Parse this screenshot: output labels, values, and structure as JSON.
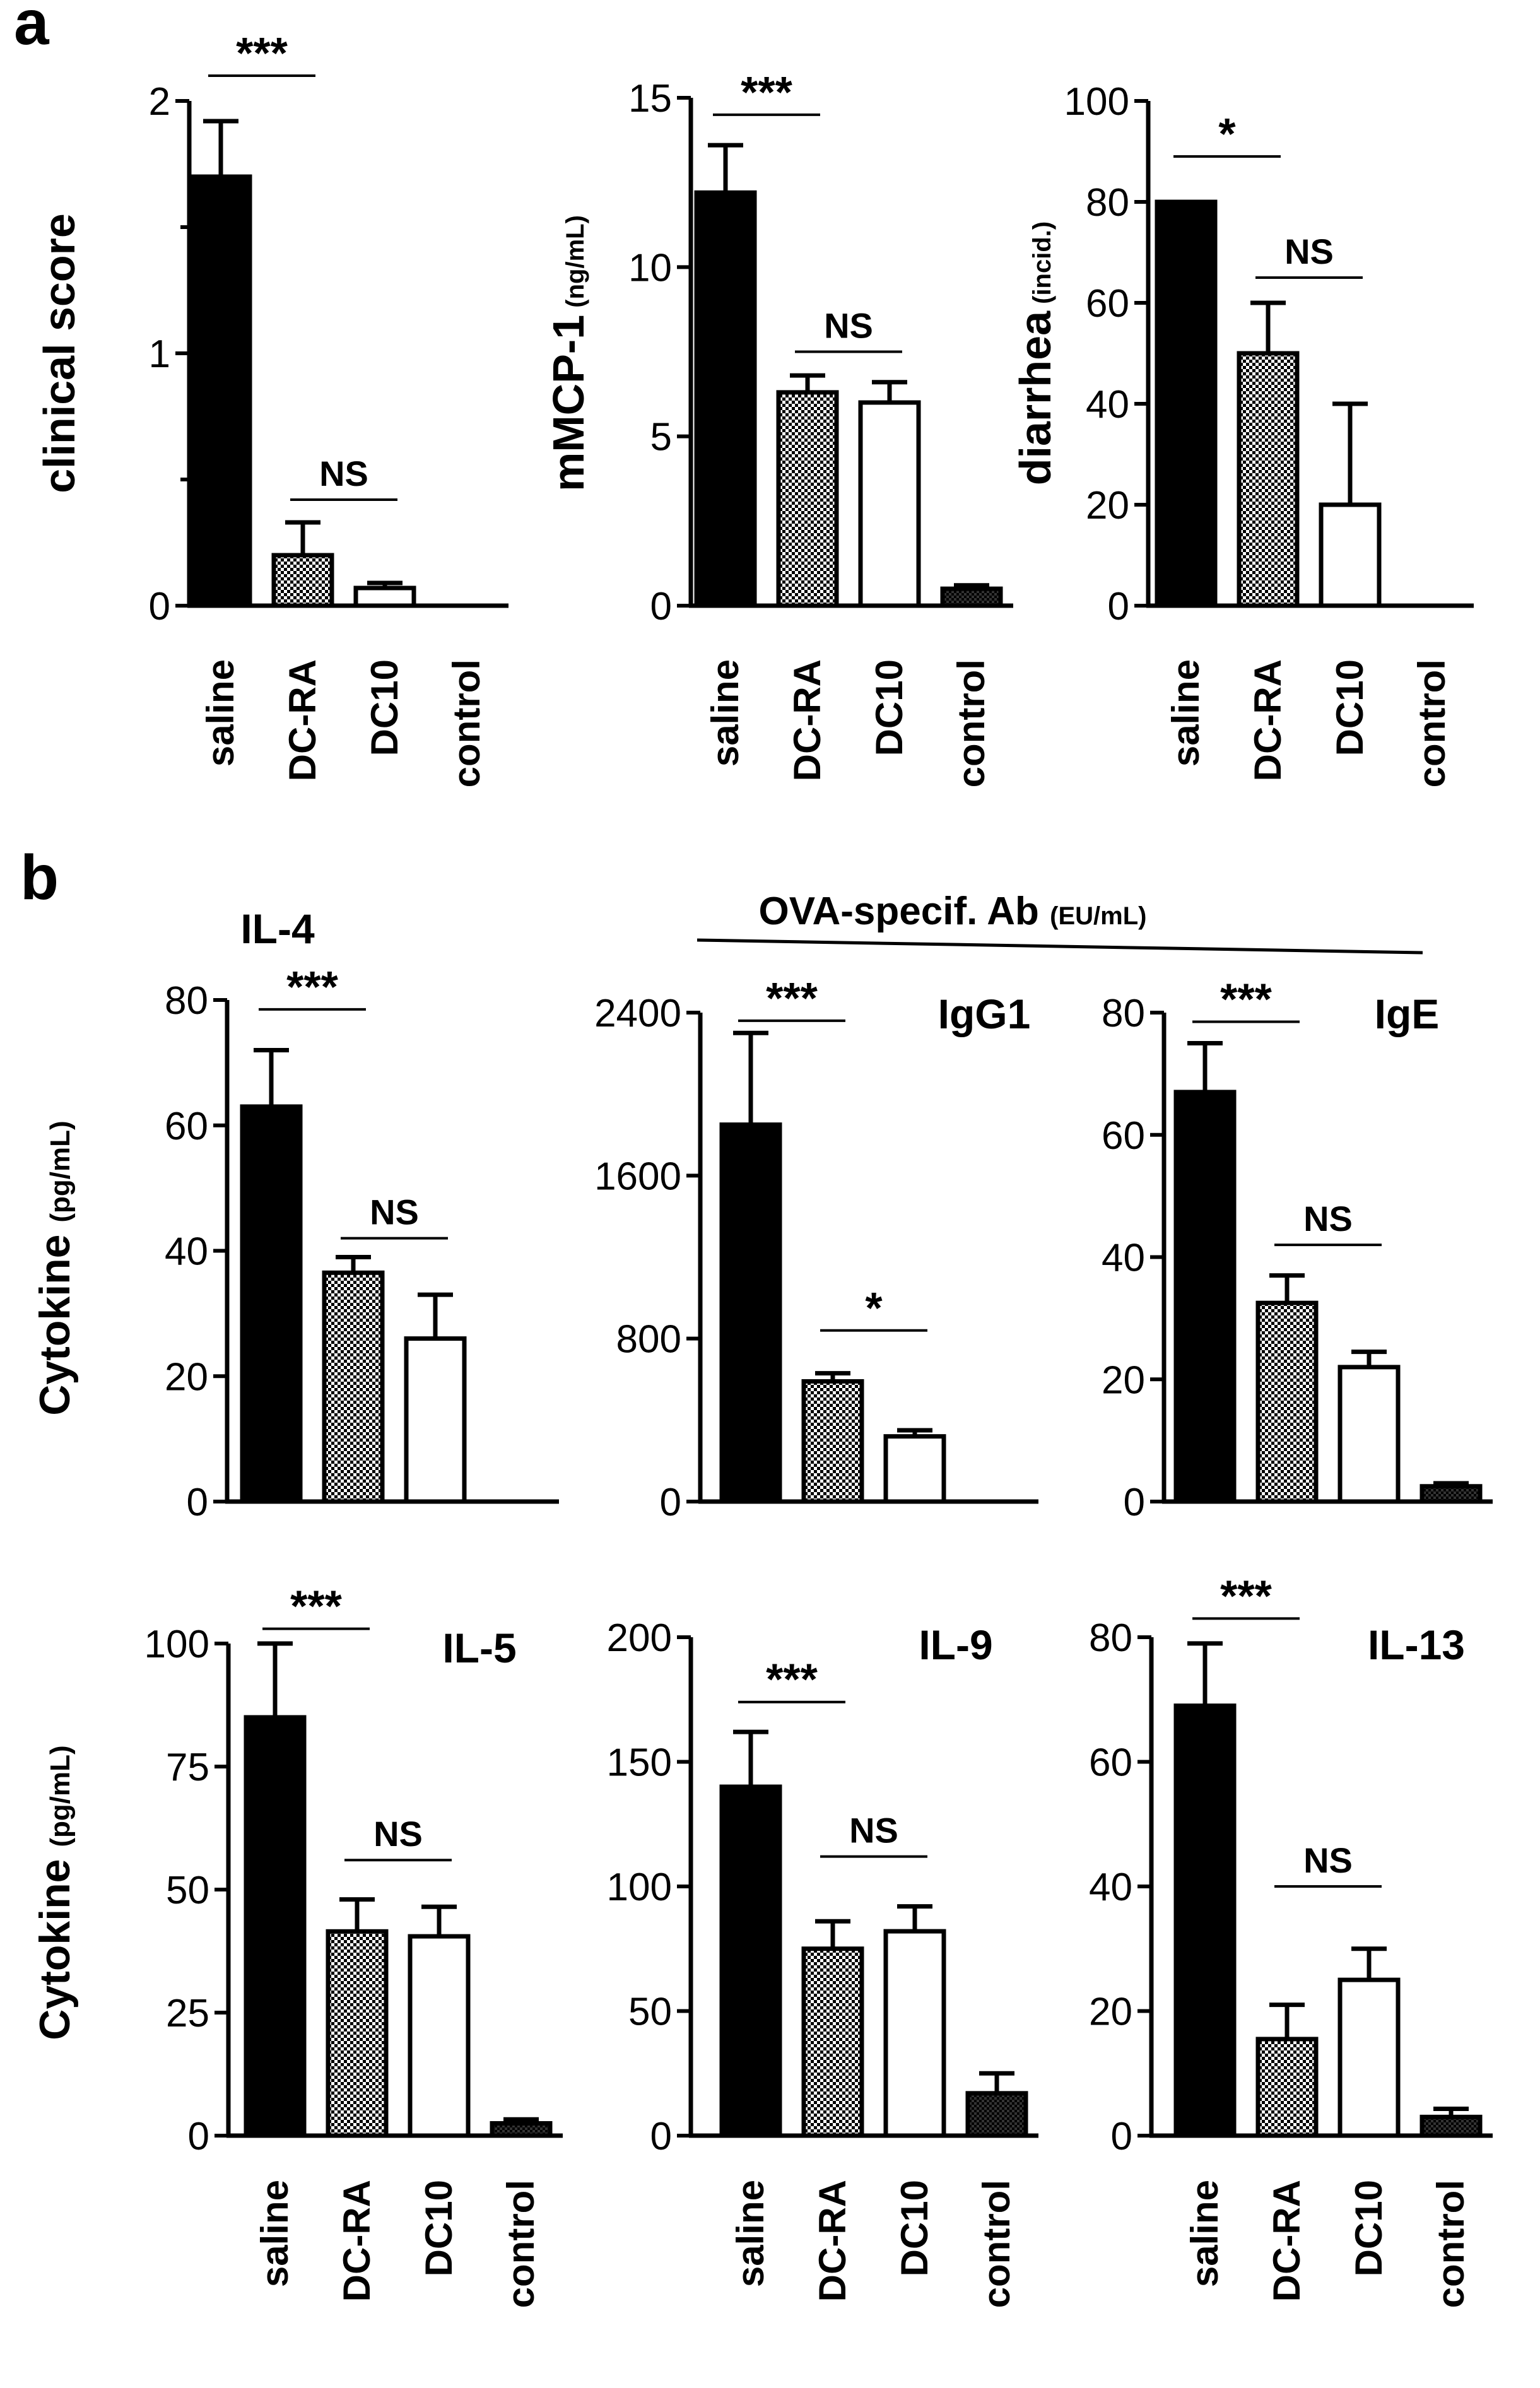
{
  "figure": {
    "panel_a_letter": "a",
    "panel_b_letter": "b",
    "cytokine_ylabel_main": "Cytokine",
    "cytokine_ylabel_unit": "(pg/mL)",
    "ova_header_main": "OVA-specif. Ab",
    "ova_header_unit": "(EU/mL)"
  },
  "chart_data": [
    {
      "id": "clinical",
      "type": "bar",
      "title": "",
      "ylabel": "clinical score",
      "ylabel_unit": "",
      "categories": [
        "saline",
        "DC-RA",
        "DC10",
        "control"
      ],
      "values": [
        1.7,
        0.2,
        0.07,
        0
      ],
      "errors": [
        0.22,
        0.13,
        0.02,
        0
      ],
      "patterns": [
        "solid",
        "hatch",
        "open",
        "dark"
      ],
      "ylim": [
        0,
        2
      ],
      "yticks": [
        0,
        1,
        2
      ],
      "yticklabels": [
        "0",
        "1",
        "2"
      ],
      "minor_ticks": [
        0.5,
        1.5
      ],
      "significance": [
        {
          "label": "***",
          "from": 0,
          "to": 1,
          "y": 2.1
        },
        {
          "label": "NS",
          "from": 1,
          "to": 2,
          "y": 0.42
        }
      ]
    },
    {
      "id": "mmcp1",
      "type": "bar",
      "title": "",
      "ylabel": "mMCP-1",
      "ylabel_unit": "(ng/mL)",
      "categories": [
        "saline",
        "DC-RA",
        "DC10",
        "control"
      ],
      "values": [
        12.2,
        6.3,
        6.0,
        0.5
      ],
      "errors": [
        1.4,
        0.5,
        0.6,
        0.1
      ],
      "patterns": [
        "solid",
        "hatch",
        "open",
        "dark"
      ],
      "ylim": [
        0,
        15
      ],
      "yticks": [
        0,
        5,
        10,
        15
      ],
      "yticklabels": [
        "0",
        "5",
        "10",
        "15"
      ],
      "minor_ticks": [],
      "significance": [
        {
          "label": "***",
          "from": 0,
          "to": 1,
          "y": 14.5
        },
        {
          "label": "NS",
          "from": 1,
          "to": 2,
          "y": 7.5
        }
      ]
    },
    {
      "id": "diarrhea",
      "type": "bar",
      "title": "",
      "ylabel": "diarrhea",
      "ylabel_unit": "(incid.)",
      "categories": [
        "saline",
        "DC-RA",
        "DC10",
        "control"
      ],
      "values": [
        80,
        50,
        20,
        0
      ],
      "errors": [
        0,
        10,
        20,
        0
      ],
      "patterns": [
        "solid",
        "hatch",
        "open",
        "dark"
      ],
      "ylim": [
        0,
        100
      ],
      "yticks": [
        0,
        20,
        40,
        60,
        80,
        100
      ],
      "yticklabels": [
        "0",
        "20",
        "40",
        "60",
        "80",
        "100"
      ],
      "minor_ticks": [],
      "significance": [
        {
          "label": "*",
          "from": 0,
          "to": 1,
          "y": 89
        },
        {
          "label": "NS",
          "from": 1,
          "to": 2,
          "y": 65
        }
      ]
    },
    {
      "id": "il4",
      "type": "bar",
      "title": "IL-4",
      "ylabel": "",
      "ylabel_unit": "",
      "categories": [
        "saline",
        "DC-RA",
        "DC10"
      ],
      "values": [
        63,
        36.5,
        26
      ],
      "errors": [
        9,
        2.5,
        7
      ],
      "patterns": [
        "solid",
        "hatch",
        "open"
      ],
      "ylim": [
        0,
        80
      ],
      "yticks": [
        0,
        20,
        40,
        60,
        80
      ],
      "yticklabels": [
        "0",
        "20",
        "40",
        "60",
        "80"
      ],
      "minor_ticks": [],
      "significance": [
        {
          "label": "***",
          "from": 0,
          "to": 1,
          "y": 78.5
        },
        {
          "label": "NS",
          "from": 1,
          "to": 2,
          "y": 42
        }
      ]
    },
    {
      "id": "igg1",
      "type": "bar",
      "title": "IgG1",
      "ylabel": "",
      "ylabel_unit": "",
      "categories": [
        "saline",
        "DC-RA",
        "DC10"
      ],
      "values": [
        1850,
        590,
        320
      ],
      "errors": [
        450,
        40,
        30
      ],
      "patterns": [
        "solid",
        "hatch",
        "open"
      ],
      "ylim": [
        0,
        2400
      ],
      "yticks": [
        0,
        800,
        1600,
        2400
      ],
      "yticklabels": [
        "0",
        "800",
        "1600",
        "2400"
      ],
      "minor_ticks": [],
      "significance": [
        {
          "label": "***",
          "from": 0,
          "to": 1,
          "y": 2360
        },
        {
          "label": "*",
          "from": 1,
          "to": 2,
          "y": 840
        }
      ]
    },
    {
      "id": "ige",
      "type": "bar",
      "title": "IgE",
      "ylabel": "",
      "ylabel_unit": "",
      "categories": [
        "saline",
        "DC-RA",
        "DC10",
        "control"
      ],
      "values": [
        67,
        32.5,
        22,
        2.5
      ],
      "errors": [
        8,
        4.5,
        2.5,
        0.5
      ],
      "patterns": [
        "solid",
        "hatch",
        "open",
        "dark"
      ],
      "ylim": [
        0,
        80
      ],
      "yticks": [
        0,
        20,
        40,
        60,
        80
      ],
      "yticklabels": [
        "0",
        "20",
        "40",
        "60",
        "80"
      ],
      "minor_ticks": [],
      "significance": [
        {
          "label": "***",
          "from": 0,
          "to": 1,
          "y": 78.5
        },
        {
          "label": "NS",
          "from": 1,
          "to": 2,
          "y": 42
        }
      ]
    },
    {
      "id": "il5",
      "type": "bar",
      "title": "IL-5",
      "ylabel": "",
      "ylabel_unit": "",
      "categories": [
        "saline",
        "DC-RA",
        "DC10",
        "control"
      ],
      "values": [
        85,
        41.5,
        40.5,
        2.5
      ],
      "errors": [
        15,
        6.5,
        6,
        0.8
      ],
      "patterns": [
        "solid",
        "hatch",
        "open",
        "dark"
      ],
      "ylim": [
        0,
        100
      ],
      "yticks": [
        0,
        25,
        50,
        75,
        100
      ],
      "yticklabels": [
        "0",
        "25",
        "50",
        "75",
        "100"
      ],
      "minor_ticks": [],
      "significance": [
        {
          "label": "***",
          "from": 0,
          "to": 1,
          "y": 103
        },
        {
          "label": "NS",
          "from": 1,
          "to": 2,
          "y": 56
        }
      ]
    },
    {
      "id": "il9",
      "type": "bar",
      "title": "IL-9",
      "ylabel": "",
      "ylabel_unit": "",
      "categories": [
        "saline",
        "DC-RA",
        "DC10",
        "control"
      ],
      "values": [
        140,
        75,
        82,
        17
      ],
      "errors": [
        22,
        11,
        10,
        8
      ],
      "patterns": [
        "solid",
        "hatch",
        "open",
        "dark"
      ],
      "ylim": [
        0,
        200
      ],
      "yticks": [
        0,
        50,
        100,
        150,
        200
      ],
      "yticklabels": [
        "0",
        "50",
        "100",
        "150",
        "200"
      ],
      "minor_ticks": [],
      "significance": [
        {
          "label": "***",
          "from": 0,
          "to": 1,
          "y": 174
        },
        {
          "label": "NS",
          "from": 1,
          "to": 2,
          "y": 112
        }
      ]
    },
    {
      "id": "il13",
      "type": "bar",
      "title": "IL-13",
      "ylabel": "",
      "ylabel_unit": "",
      "categories": [
        "saline",
        "DC-RA",
        "DC10",
        "control"
      ],
      "values": [
        69,
        15.5,
        25,
        3
      ],
      "errors": [
        10,
        5.5,
        5,
        1.3
      ],
      "patterns": [
        "solid",
        "hatch",
        "open",
        "dark"
      ],
      "ylim": [
        0,
        80
      ],
      "yticks": [
        0,
        20,
        40,
        60,
        80
      ],
      "yticklabels": [
        "0",
        "20",
        "40",
        "60",
        "80"
      ],
      "minor_ticks": [],
      "significance": [
        {
          "label": "***",
          "from": 0,
          "to": 1,
          "y": 83
        },
        {
          "label": "NS",
          "from": 1,
          "to": 2,
          "y": 40
        }
      ]
    }
  ]
}
